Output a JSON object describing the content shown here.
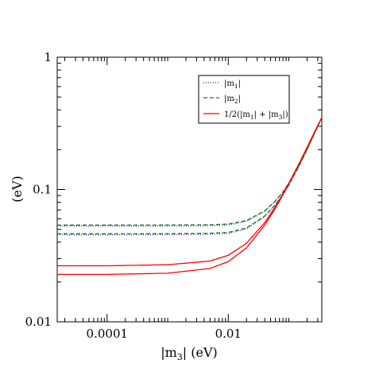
{
  "chart_data": {
    "type": "line",
    "xlabel": {
      "pre": "|m",
      "sub": "3",
      "post": "| (eV)"
    },
    "ylabel": "(eV)",
    "xscale": "log",
    "yscale": "log",
    "xlim": [
      1.5e-05,
      0.35
    ],
    "ylim": [
      0.01,
      1
    ],
    "x_ticks": [
      {
        "value": 0.0001,
        "label": "0.0001"
      },
      {
        "value": 0.01,
        "label": "0.01"
      }
    ],
    "y_ticks": [
      {
        "value": 0.01,
        "label": "0.01"
      },
      {
        "value": 0.1,
        "label": "0.1"
      },
      {
        "value": 1,
        "label": "1"
      }
    ],
    "legend": {
      "position": "top-right",
      "entries": [
        {
          "text": "|m",
          "sub": "1",
          "post": "|",
          "color": "#1a1aa8",
          "dash": "1,2"
        },
        {
          "text": "|m",
          "sub": "2",
          "post": "|",
          "color": "#1e7a1e",
          "dash": "5,3"
        },
        {
          "text": "1/2(|m",
          "sub": "1",
          "post": "| + |m",
          "sub2": "3",
          "post2": "|)",
          "color": "#ff0000",
          "dash": ""
        }
      ]
    },
    "series": [
      {
        "style": "m1",
        "color": "#1a1aa8",
        "dash": "1,2",
        "x": [
          1.5e-05,
          0.0001,
          0.001,
          0.005,
          0.01,
          0.02,
          0.04,
          0.06,
          0.08,
          0.1,
          0.15,
          0.2,
          0.3,
          0.35
        ],
        "y": [
          0.053,
          0.053,
          0.0531,
          0.0533,
          0.054,
          0.0575,
          0.0685,
          0.0815,
          0.0958,
          0.1113,
          0.1545,
          0.2007,
          0.3002,
          0.35
        ]
      },
      {
        "style": "m1",
        "color": "#1a1aa8",
        "dash": "1,2",
        "x": [
          1.5e-05,
          0.0001,
          0.001,
          0.005,
          0.01,
          0.02,
          0.04,
          0.06,
          0.08,
          0.1,
          0.15,
          0.2,
          0.3,
          0.35
        ],
        "y": [
          0.0455,
          0.0455,
          0.0456,
          0.0459,
          0.0466,
          0.0505,
          0.0624,
          0.0764,
          0.0915,
          0.1078,
          0.1523,
          0.2002,
          0.3002,
          0.35
        ]
      },
      {
        "style": "m2",
        "color": "#1e7a1e",
        "dash": "5,3",
        "x": [
          1.5e-05,
          0.0001,
          0.001,
          0.005,
          0.01,
          0.02,
          0.04,
          0.06,
          0.08,
          0.1,
          0.15,
          0.2,
          0.3,
          0.35
        ],
        "y": [
          0.0538,
          0.0538,
          0.0539,
          0.0541,
          0.0548,
          0.0582,
          0.0691,
          0.082,
          0.0962,
          0.1117,
          0.1548,
          0.2009,
          0.3003,
          0.35
        ]
      },
      {
        "style": "m2",
        "color": "#1e7a1e",
        "dash": "5,3",
        "x": [
          1.5e-05,
          0.0001,
          0.001,
          0.005,
          0.01,
          0.02,
          0.04,
          0.06,
          0.08,
          0.1,
          0.15,
          0.2,
          0.3,
          0.35
        ],
        "y": [
          0.0463,
          0.0463,
          0.0464,
          0.0467,
          0.0474,
          0.0512,
          0.063,
          0.0769,
          0.0919,
          0.1082,
          0.1526,
          0.2004,
          0.3003,
          0.35
        ]
      },
      {
        "style": "avg",
        "color": "#ff0000",
        "dash": "",
        "x": [
          1.5e-05,
          0.0001,
          0.001,
          0.005,
          0.01,
          0.02,
          0.04,
          0.06,
          0.08,
          0.1,
          0.15,
          0.2,
          0.3,
          0.35
        ],
        "y": [
          0.0265,
          0.0265,
          0.027,
          0.0288,
          0.0318,
          0.0392,
          0.0562,
          0.0742,
          0.0927,
          0.1116,
          0.159,
          0.208,
          0.304,
          0.35
        ]
      },
      {
        "style": "avg",
        "color": "#ff0000",
        "dash": "",
        "x": [
          1.5e-05,
          0.0001,
          0.001,
          0.005,
          0.01,
          0.02,
          0.04,
          0.06,
          0.08,
          0.1,
          0.15,
          0.2,
          0.3,
          0.35
        ],
        "y": [
          0.0228,
          0.0228,
          0.0233,
          0.0253,
          0.0285,
          0.0362,
          0.0538,
          0.0722,
          0.0912,
          0.1105,
          0.1584,
          0.2077,
          0.304,
          0.35
        ]
      }
    ]
  }
}
